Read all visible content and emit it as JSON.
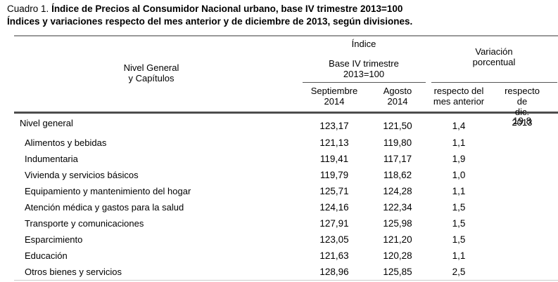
{
  "title": {
    "prefix": "Cuadro 1.",
    "main": "Índice de Precios al Consumidor Nacional urbano, base IV trimestre 2013=100",
    "subtitle": "Índices y variaciones respecto del mes anterior y de diciembre de 2013, según divisiones."
  },
  "table": {
    "header": {
      "rows_title": "Nivel General\ny Capítulos",
      "index_group_title": "Índice",
      "index_group_subtitle": "Base IV trimestre\n2013=100",
      "col_septiembre": "Septiembre\n2014",
      "col_agosto": "Agosto\n2014",
      "variation_group_title": "Variación\nporcentual",
      "col_respecto_mes": "respecto del\nmes anterior",
      "col_respecto_dic": "respecto de\ndic. 2013"
    },
    "rows": [
      {
        "label": "Nivel general",
        "indent": false,
        "septiembre_2014": "123,17",
        "agosto_2014": "121,50",
        "var_mes_anterior": "1,4",
        "var_dic_2013": "19,8"
      },
      {
        "label": "Alimentos y bebidas",
        "indent": true,
        "septiembre_2014": "121,13",
        "agosto_2014": "119,80",
        "var_mes_anterior": "1,1",
        "var_dic_2013": ""
      },
      {
        "label": "Indumentaria",
        "indent": true,
        "septiembre_2014": "119,41",
        "agosto_2014": "117,17",
        "var_mes_anterior": "1,9",
        "var_dic_2013": ""
      },
      {
        "label": "Vivienda y servicios básicos",
        "indent": true,
        "septiembre_2014": "119,79",
        "agosto_2014": "118,62",
        "var_mes_anterior": "1,0",
        "var_dic_2013": ""
      },
      {
        "label": "Equipamiento y mantenimiento del hogar",
        "indent": true,
        "septiembre_2014": "125,71",
        "agosto_2014": "124,28",
        "var_mes_anterior": "1,1",
        "var_dic_2013": ""
      },
      {
        "label": "Atención médica y gastos para la salud",
        "indent": true,
        "septiembre_2014": "124,16",
        "agosto_2014": "122,34",
        "var_mes_anterior": "1,5",
        "var_dic_2013": ""
      },
      {
        "label": "Transporte y comunicaciones",
        "indent": true,
        "septiembre_2014": "127,91",
        "agosto_2014": "125,98",
        "var_mes_anterior": "1,5",
        "var_dic_2013": ""
      },
      {
        "label": "Esparcimiento",
        "indent": true,
        "septiembre_2014": "123,05",
        "agosto_2014": "121,20",
        "var_mes_anterior": "1,5",
        "var_dic_2013": ""
      },
      {
        "label": "Educación",
        "indent": true,
        "septiembre_2014": "121,63",
        "agosto_2014": "120,28",
        "var_mes_anterior": "1,1",
        "var_dic_2013": ""
      },
      {
        "label": "Otros bienes y servicios",
        "indent": true,
        "septiembre_2014": "128,96",
        "agosto_2014": "125,85",
        "var_mes_anterior": "2,5",
        "var_dic_2013": ""
      }
    ]
  }
}
